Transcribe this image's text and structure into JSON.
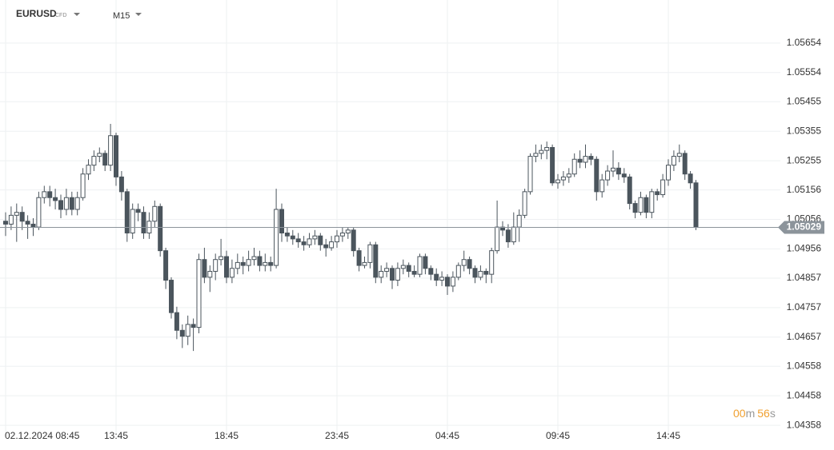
{
  "header": {
    "symbol": "EURUSD",
    "instrument": "CFD",
    "timeframe": "M15"
  },
  "countdown": {
    "minutes": "00",
    "minutes_unit": "m",
    "seconds": "56",
    "seconds_unit": "s"
  },
  "chart_data": {
    "type": "candlestick",
    "categories": [
      "02.12.2024  08:45",
      null,
      null,
      null,
      null,
      null,
      null,
      null,
      null,
      null,
      null,
      null,
      null,
      null,
      null,
      null,
      null,
      null,
      null,
      null,
      "13:45",
      null,
      null,
      null,
      null,
      null,
      null,
      null,
      null,
      null,
      null,
      null,
      null,
      null,
      null,
      null,
      null,
      null,
      null,
      null,
      "18:45",
      null,
      null,
      null,
      null,
      null,
      null,
      null,
      null,
      null,
      null,
      null,
      null,
      null,
      null,
      null,
      null,
      null,
      null,
      null,
      "23:45",
      null,
      null,
      null,
      null,
      null,
      null,
      null,
      null,
      null,
      null,
      null,
      null,
      null,
      null,
      null,
      null,
      null,
      null,
      null,
      "04:45",
      null,
      null,
      null,
      null,
      null,
      null,
      null,
      null,
      null,
      null,
      null,
      null,
      null,
      null,
      null,
      null,
      null,
      null,
      null,
      "09:45",
      null,
      null,
      null,
      null,
      null,
      null,
      null,
      null,
      null,
      null,
      null,
      null,
      null,
      null,
      null,
      null,
      null,
      null,
      null,
      "14:45",
      null,
      null,
      null,
      null,
      null
    ],
    "open": [
      1.0505,
      1.0504,
      1.0507,
      1.0508,
      1.0505,
      1.0504,
      1.0503,
      1.0513,
      1.0515,
      1.0513,
      1.0512,
      1.0509,
      1.0513,
      1.0509,
      1.0513,
      1.0521,
      1.0524,
      1.0527,
      1.0528,
      1.0524,
      1.0534,
      1.052,
      1.0515,
      1.0501,
      1.0509,
      1.0508,
      1.0501,
      1.0505,
      1.051,
      1.0495,
      1.0485,
      1.0474,
      1.0468,
      1.0466,
      1.047,
      1.0469,
      1.0492,
      1.0486,
      1.0488,
      1.0492,
      1.0493,
      1.0486,
      1.0489,
      1.0491,
      1.049,
      1.0492,
      1.0493,
      1.049,
      1.0491,
      1.049,
      1.0509,
      1.0501,
      1.05,
      1.0499,
      1.0498,
      1.0497,
      1.0499,
      1.05,
      1.0497,
      1.0496,
      1.0498,
      1.05,
      1.0501,
      1.0502,
      1.0495,
      1.049,
      1.0491,
      1.0497,
      1.0486,
      1.0488,
      1.0489,
      1.0485,
      1.0489,
      1.049,
      1.0488,
      1.0487,
      1.0493,
      1.0489,
      1.0487,
      1.0485,
      1.0486,
      1.0483,
      1.0486,
      1.049,
      1.0492,
      1.0489,
      1.0486,
      1.0488,
      1.0487,
      1.0495,
      1.0503,
      1.0502,
      1.0498,
      1.0503,
      1.0507,
      1.0515,
      1.0527,
      1.0528,
      1.0529,
      1.053,
      1.0518,
      1.0519,
      1.052,
      1.0521,
      1.0526,
      1.0525,
      1.0527,
      1.0526,
      1.0515,
      1.0519,
      1.0522,
      1.0523,
      1.0521,
      1.052,
      1.0511,
      1.0508,
      1.0513,
      1.0508,
      1.0515,
      1.0514,
      1.0519,
      1.0524,
      1.0527,
      1.0528,
      1.0521,
      1.0518
    ],
    "high": [
      1.0508,
      1.051,
      1.0511,
      1.051,
      1.0507,
      1.0506,
      1.0515,
      1.0517,
      1.0517,
      1.0516,
      1.0514,
      1.0516,
      1.0515,
      1.0515,
      1.0523,
      1.0526,
      1.0529,
      1.053,
      1.0529,
      1.0538,
      1.0535,
      1.0522,
      1.0516,
      1.0511,
      1.0511,
      1.051,
      1.0508,
      1.0512,
      1.0511,
      1.0496,
      1.0486,
      1.0476,
      1.047,
      1.0473,
      1.0472,
      1.0494,
      1.0496,
      1.049,
      1.0494,
      1.0499,
      1.0495,
      1.0492,
      1.0494,
      1.0493,
      1.0495,
      1.0496,
      1.0495,
      1.0494,
      1.0493,
      1.0516,
      1.0511,
      1.0503,
      1.0502,
      1.0501,
      1.05,
      1.0501,
      1.0502,
      1.0501,
      1.0499,
      1.05,
      1.0502,
      1.0503,
      1.0503,
      1.0503,
      1.0496,
      1.0493,
      1.0498,
      1.0498,
      1.049,
      1.0491,
      1.049,
      1.0491,
      1.0492,
      1.0491,
      1.049,
      1.0494,
      1.0494,
      1.049,
      1.0489,
      1.0488,
      1.0487,
      1.0488,
      1.0491,
      1.0495,
      1.0493,
      1.049,
      1.049,
      1.0489,
      1.0496,
      1.0512,
      1.0505,
      1.0504,
      1.0508,
      1.0509,
      1.0516,
      1.0528,
      1.0531,
      1.0531,
      1.0532,
      1.0531,
      1.0521,
      1.0522,
      1.0523,
      1.0528,
      1.0529,
      1.0531,
      1.0528,
      1.0527,
      1.0521,
      1.0524,
      1.0529,
      1.0525,
      1.0523,
      1.0521,
      1.0512,
      1.0515,
      1.0514,
      1.0516,
      1.0516,
      1.0521,
      1.0526,
      1.0529,
      1.0531,
      1.0529,
      1.0522,
      1.0519
    ],
    "low": [
      1.05,
      1.0502,
      1.0498,
      1.0502,
      1.0499,
      1.05,
      1.0502,
      1.0511,
      1.051,
      1.0509,
      1.0506,
      1.0507,
      1.0507,
      1.0507,
      1.0512,
      1.0519,
      1.0522,
      1.0525,
      1.0522,
      1.0522,
      1.0517,
      1.0512,
      1.0498,
      1.0499,
      1.0505,
      1.0499,
      1.0499,
      1.0503,
      1.0493,
      1.0482,
      1.0472,
      1.0465,
      1.0462,
      1.0463,
      1.0461,
      1.0467,
      1.0484,
      1.0481,
      1.0485,
      1.049,
      1.0484,
      1.0484,
      1.0487,
      1.0487,
      1.0488,
      1.049,
      1.0488,
      1.0488,
      1.0488,
      1.0489,
      1.0498,
      1.0498,
      1.0497,
      1.0496,
      1.0495,
      1.0496,
      1.0497,
      1.0495,
      1.0493,
      1.0495,
      1.0496,
      1.0498,
      1.0499,
      1.0493,
      1.0488,
      1.0489,
      1.0489,
      1.0484,
      1.0484,
      1.0486,
      1.0482,
      1.0483,
      1.0487,
      1.0486,
      1.0486,
      1.0486,
      1.0487,
      1.0485,
      1.0483,
      1.0483,
      1.048,
      1.0481,
      1.0485,
      1.0488,
      1.0487,
      1.0484,
      1.0485,
      1.0484,
      1.0484,
      1.0494,
      1.05,
      1.0496,
      1.0497,
      1.0498,
      1.0506,
      1.0514,
      1.0525,
      1.0526,
      1.0526,
      1.0517,
      1.0516,
      1.0517,
      1.0518,
      1.052,
      1.0523,
      1.0523,
      1.0524,
      1.0512,
      1.0513,
      1.0517,
      1.052,
      1.0519,
      1.0518,
      1.0509,
      1.0506,
      1.0507,
      1.0506,
      1.0506,
      1.0512,
      1.0513,
      1.0517,
      1.0522,
      1.0525,
      1.0519,
      1.0516,
      1.0502
    ],
    "close": [
      1.0504,
      1.0507,
      1.0508,
      1.0505,
      1.0504,
      1.0503,
      1.0513,
      1.0515,
      1.0513,
      1.0512,
      1.0509,
      1.0513,
      1.0509,
      1.0513,
      1.0521,
      1.0524,
      1.0527,
      1.0528,
      1.0524,
      1.0534,
      1.052,
      1.0515,
      1.0501,
      1.0509,
      1.0508,
      1.0501,
      1.0505,
      1.051,
      1.0495,
      1.0485,
      1.0474,
      1.0468,
      1.0466,
      1.047,
      1.0469,
      1.0492,
      1.0486,
      1.0488,
      1.0492,
      1.0493,
      1.0486,
      1.0489,
      1.0491,
      1.049,
      1.0492,
      1.0493,
      1.049,
      1.0491,
      1.049,
      1.0509,
      1.0501,
      1.05,
      1.0499,
      1.0498,
      1.0497,
      1.0499,
      1.05,
      1.0497,
      1.0496,
      1.0498,
      1.05,
      1.0501,
      1.0502,
      1.0495,
      1.049,
      1.0491,
      1.0497,
      1.0486,
      1.0488,
      1.0489,
      1.0485,
      1.0489,
      1.049,
      1.0488,
      1.0487,
      1.0493,
      1.0489,
      1.0487,
      1.0485,
      1.0486,
      1.0483,
      1.0486,
      1.049,
      1.0492,
      1.0489,
      1.0486,
      1.0488,
      1.0487,
      1.0495,
      1.0503,
      1.0502,
      1.0498,
      1.0503,
      1.0507,
      1.0515,
      1.0527,
      1.0528,
      1.0529,
      1.053,
      1.0518,
      1.0519,
      1.052,
      1.0521,
      1.0526,
      1.0525,
      1.0527,
      1.0526,
      1.0515,
      1.0519,
      1.0522,
      1.0523,
      1.0521,
      1.052,
      1.0511,
      1.0508,
      1.0513,
      1.0508,
      1.0515,
      1.0514,
      1.0519,
      1.0524,
      1.0527,
      1.0528,
      1.0521,
      1.0518,
      1.05029
    ],
    "up_color": "#ffffff",
    "down_color": "#4b555d",
    "wick_color": "#4b555d",
    "last_price": 1.05029,
    "last_price_color": "#8c949b",
    "ylim": [
      1.04323,
      1.058
    ],
    "yticks": [
      1.05654,
      1.05554,
      1.05455,
      1.05355,
      1.05255,
      1.05156,
      1.05056,
      1.04956,
      1.04857,
      1.04757,
      1.04657,
      1.04558,
      1.04458,
      1.04358
    ],
    "grid": true
  }
}
